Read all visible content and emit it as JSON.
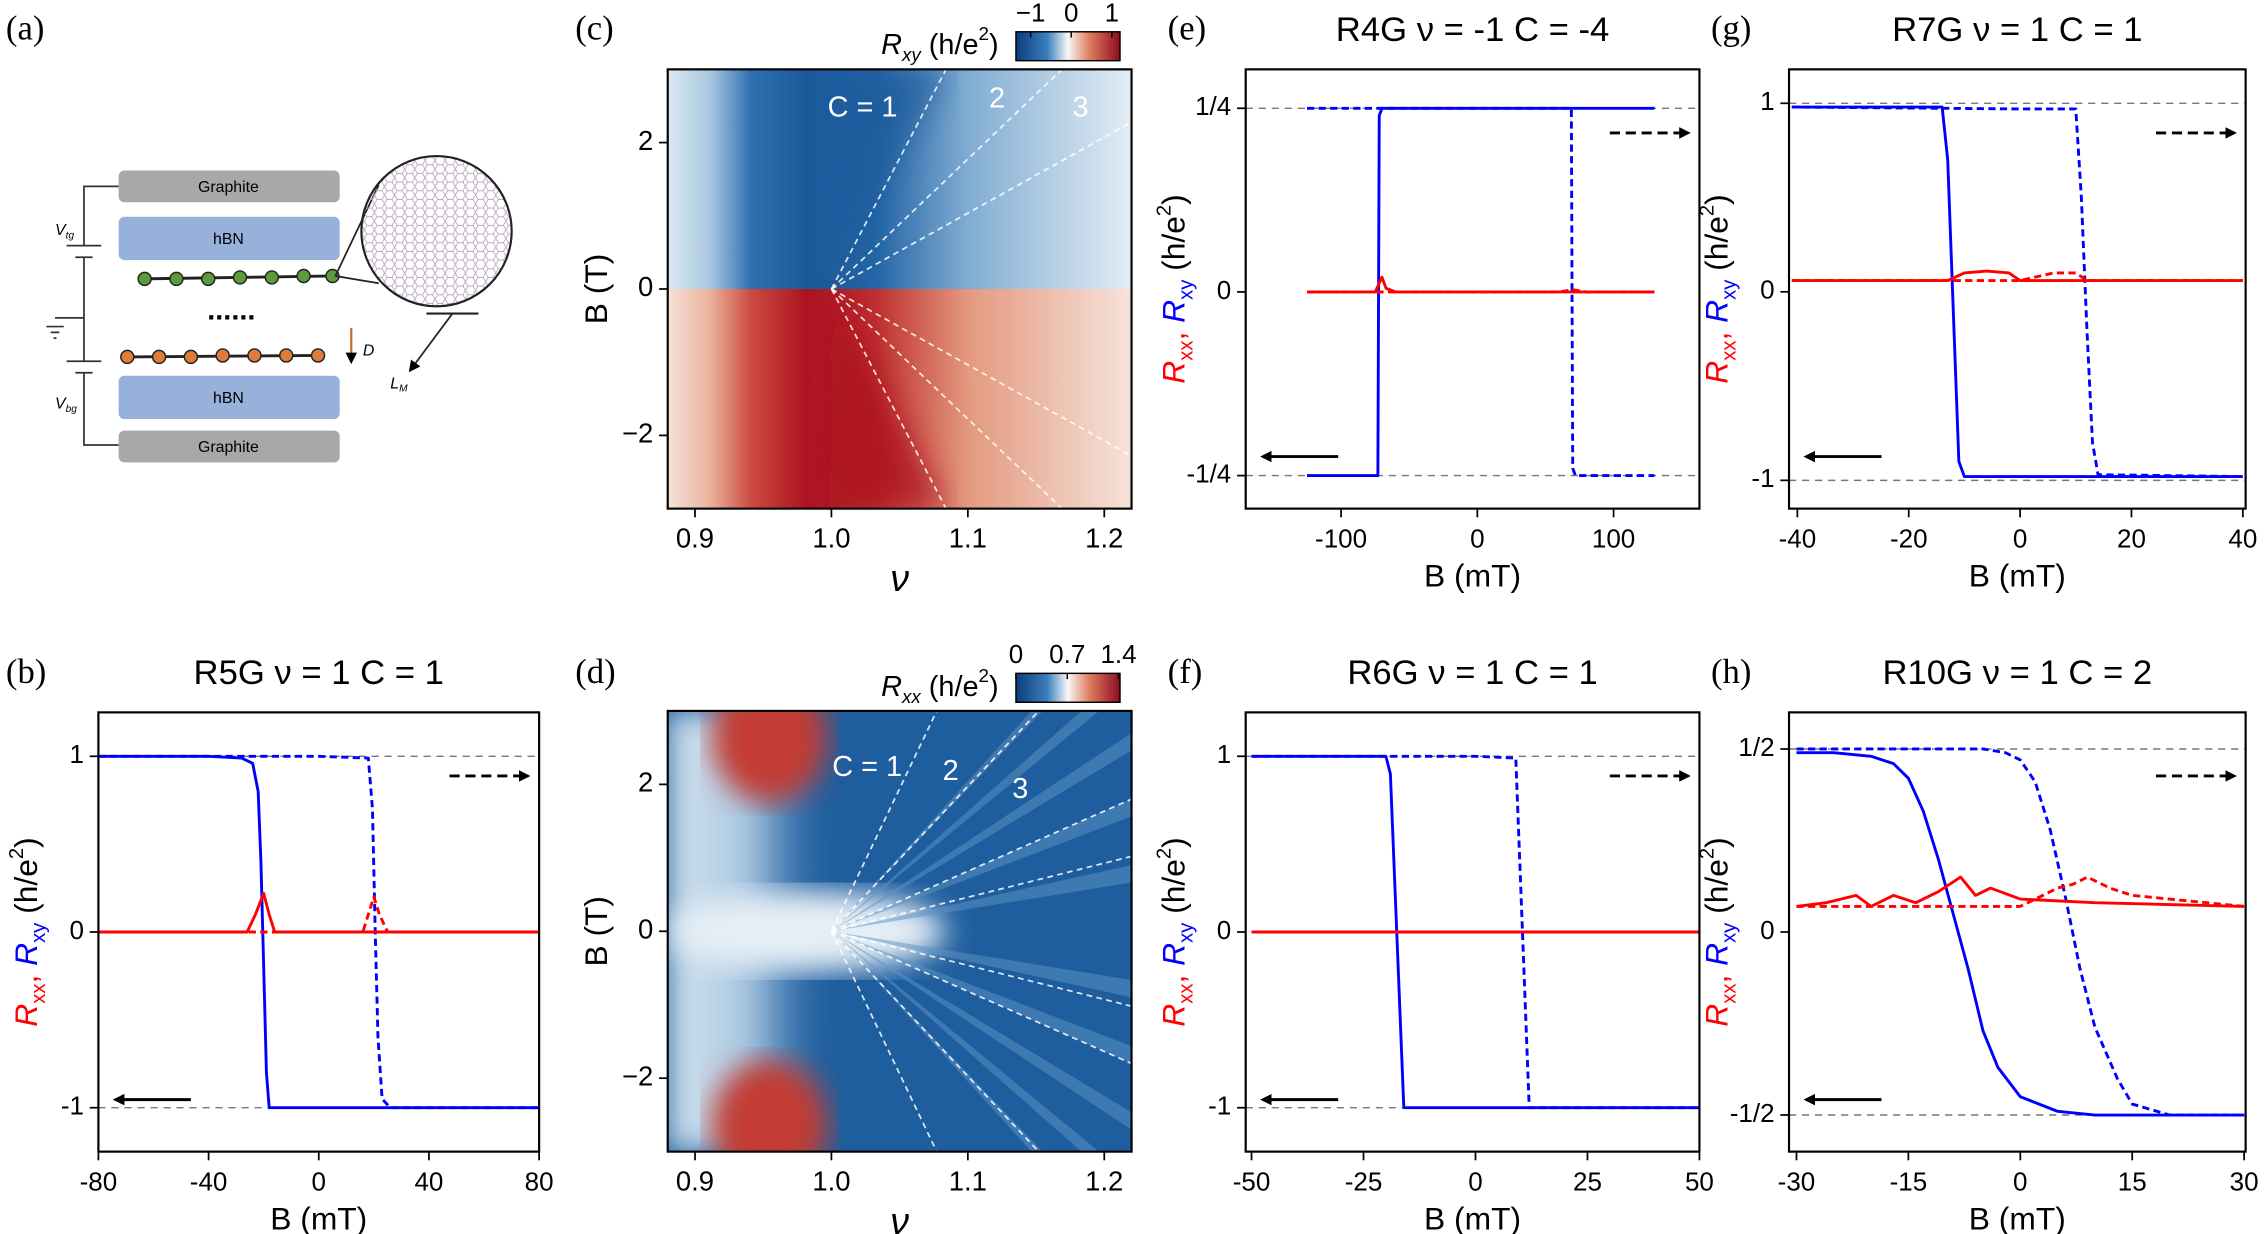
{
  "diagram": {
    "label": "(a)",
    "layers": [
      "Graphite",
      "hBN",
      "hBN",
      "Graphite"
    ],
    "top_gate": {
      "symbol": "V",
      "sub": "tg"
    },
    "bottom_gate": {
      "symbol": "V",
      "sub": "bg"
    },
    "field": "D",
    "moire": {
      "symbol": "L",
      "sub": "M"
    }
  },
  "chart_data": [
    {
      "panel": "(c)",
      "type": "heatmap",
      "xlabel": "ν",
      "ylabel": "B (T)",
      "colorbar": {
        "label": [
          "R",
          "xy",
          " (h/e",
          "2",
          ")"
        ],
        "lim": [
          -1.36,
          1.2
        ],
        "ticks": [
          {
            "value": -1,
            "label": "−1"
          },
          0,
          1
        ]
      },
      "annotations": [
        "C = 1",
        "2",
        "3"
      ],
      "xlim": [
        0.88,
        1.22
      ],
      "xticks": [
        0.9,
        {
          "value": 1,
          "label": "1.0"
        },
        1.1,
        1.2
      ],
      "ylim": [
        -3,
        3
      ],
      "yticks": [
        {
          "value": -2,
          "label": "−2"
        },
        0,
        2
      ]
    },
    {
      "panel": "(d)",
      "type": "heatmap",
      "xlabel": "ν",
      "ylabel": "B (T)",
      "colorbar": {
        "label": [
          "R",
          "xx",
          " (h/e",
          "2",
          ")"
        ],
        "lim": [
          0,
          1.42
        ],
        "ticks": [
          0,
          0.7,
          1.4
        ]
      },
      "annotations": [
        "C = 1",
        "2",
        "3"
      ],
      "xlim": [
        0.88,
        1.22
      ],
      "xticks": [
        0.9,
        {
          "value": 1,
          "label": "1.0"
        },
        1.1,
        1.2
      ],
      "ylim": [
        -3,
        3
      ],
      "yticks": [
        {
          "value": -2,
          "label": "−2"
        },
        0,
        2
      ]
    },
    {
      "panel": "(e)",
      "type": "line",
      "title": "R4G ν = -1 C = -4",
      "xlabel": "B (mT)",
      "ylabel": [
        "R",
        "xx",
        ", ",
        "R",
        "xy",
        " (h/e",
        "2",
        ")"
      ],
      "xlim": [
        -170,
        163
      ],
      "xticks": [
        -100,
        0,
        100
      ],
      "ylim": [
        -0.295,
        0.303
      ],
      "yticks": [
        {
          "value": -0.25,
          "label": "-1/4"
        },
        0,
        {
          "value": 0.25,
          "label": "1/4"
        }
      ],
      "reference_lines": [
        0.25,
        -0.25
      ],
      "series": [
        {
          "color": "#0000ff",
          "dash": false,
          "x": [
            -125,
            -73,
            -72,
            -70,
            0,
            130
          ],
          "values": [
            -0.25,
            -0.25,
            0.24,
            0.25,
            0.25,
            0.25
          ]
        },
        {
          "color": "#0000ff",
          "dash": true,
          "x": [
            -125,
            0,
            69,
            70,
            72,
            130
          ],
          "values": [
            0.25,
            0.25,
            0.25,
            -0.24,
            -0.25,
            -0.25
          ]
        },
        {
          "color": "#ff0000",
          "dash": false,
          "x": [
            -125,
            -75,
            -70,
            -67,
            -60,
            0,
            130
          ],
          "values": [
            0,
            0,
            0.02,
            0.005,
            0,
            0,
            0
          ]
        },
        {
          "color": "#ff0000",
          "dash": true,
          "x": [
            -125,
            60,
            70,
            80,
            130
          ],
          "values": [
            0,
            0,
            0.003,
            0,
            0
          ]
        }
      ]
    },
    {
      "panel": "(g)",
      "type": "line",
      "title": "R7G ν = 1 C = 1",
      "xlabel": "B (mT)",
      "ylabel": [
        "R",
        "xx",
        ", ",
        "R",
        "xy",
        " (h/e",
        "2",
        ")"
      ],
      "xlim": [
        -41.5,
        40.5
      ],
      "xticks": [
        -40,
        -20,
        0,
        20,
        40
      ],
      "ylim": [
        -1.15,
        1.18
      ],
      "yticks": [
        -1,
        0,
        1
      ],
      "reference_lines": [
        1,
        -1
      ],
      "series": [
        {
          "color": "#0000ff",
          "dash": false,
          "x": [
            -41,
            -14,
            -13,
            -12,
            -11,
            -10,
            0,
            40
          ],
          "values": [
            0.98,
            0.98,
            0.7,
            -0.1,
            -0.9,
            -0.98,
            -0.98,
            -0.98
          ]
        },
        {
          "color": "#0000ff",
          "dash": true,
          "x": [
            -41,
            0,
            10,
            11,
            12,
            13,
            14,
            40
          ],
          "values": [
            0.98,
            0.97,
            0.97,
            0.5,
            -0.2,
            -0.8,
            -0.97,
            -0.98
          ]
        },
        {
          "color": "#ff0000",
          "dash": false,
          "x": [
            -41,
            -13,
            -10,
            -6,
            -2,
            0,
            2,
            40
          ],
          "values": [
            0.06,
            0.06,
            0.1,
            0.11,
            0.1,
            0.06,
            0.06,
            0.06
          ]
        },
        {
          "color": "#ff0000",
          "dash": true,
          "x": [
            -41,
            -13,
            0,
            3,
            6,
            10,
            12,
            40
          ],
          "values": [
            0.06,
            0.06,
            0.06,
            0.08,
            0.1,
            0.1,
            0.06,
            0.06
          ]
        }
      ]
    },
    {
      "panel": "(b)",
      "type": "line",
      "title": "R5G ν = 1 C = 1",
      "xlabel": "B (mT)",
      "ylabel": [
        "R",
        "xx",
        ", ",
        "R",
        "xy",
        " (h/e",
        "2",
        ")"
      ],
      "xlim": [
        -80,
        80
      ],
      "xticks": [
        -80,
        -40,
        0,
        40,
        80
      ],
      "ylim": [
        -1.25,
        1.25
      ],
      "yticks": [
        -1,
        0,
        1
      ],
      "reference_lines": [
        1,
        -1
      ],
      "series": [
        {
          "color": "#0000ff",
          "dash": false,
          "x": [
            -80,
            -40,
            -28,
            -24,
            -22,
            -21,
            -20,
            -19,
            -18,
            0,
            40,
            80
          ],
          "values": [
            1,
            1,
            0.99,
            0.96,
            0.8,
            0.4,
            -0.2,
            -0.8,
            -1,
            -1,
            -1,
            -1
          ]
        },
        {
          "color": "#0000ff",
          "dash": true,
          "x": [
            -80,
            0,
            18,
            19.5,
            20.5,
            21.5,
            23,
            26,
            40,
            80
          ],
          "values": [
            1,
            1,
            0.99,
            0.7,
            0,
            -0.6,
            -0.95,
            -1,
            -1,
            -1
          ]
        },
        {
          "color": "#ff0000",
          "dash": false,
          "x": [
            -80,
            -26,
            -23,
            -20,
            -18,
            -16,
            80
          ],
          "values": [
            0,
            0,
            0.1,
            0.22,
            0.1,
            0,
            0
          ]
        },
        {
          "color": "#ff0000",
          "dash": true,
          "x": [
            -80,
            16,
            18,
            20,
            22,
            25,
            80
          ],
          "values": [
            0,
            0,
            0.1,
            0.2,
            0.1,
            0,
            0
          ]
        }
      ]
    },
    {
      "panel": "(f)",
      "type": "line",
      "title": "R6G ν = 1 C = 1",
      "xlabel": "B (mT)",
      "ylabel": [
        "R",
        "xx",
        ", ",
        "R",
        "xy",
        " (h/e",
        "2",
        ")"
      ],
      "xlim": [
        -51.3,
        50
      ],
      "xticks": [
        -50,
        -25,
        0,
        25,
        50
      ],
      "ylim": [
        -1.25,
        1.25
      ],
      "yticks": [
        -1,
        0,
        1
      ],
      "reference_lines": [
        1,
        -1
      ],
      "series": [
        {
          "color": "#0000ff",
          "dash": false,
          "x": [
            -50,
            -20,
            -19,
            -16,
            0,
            50
          ],
          "values": [
            1,
            1,
            0.9,
            -1,
            -1,
            -1
          ]
        },
        {
          "color": "#0000ff",
          "dash": true,
          "x": [
            -50,
            0,
            9,
            12,
            50
          ],
          "values": [
            1,
            1,
            0.99,
            -1,
            -1
          ]
        },
        {
          "color": "#ff0000",
          "dash": false,
          "x": [
            -50,
            0,
            50
          ],
          "values": [
            0,
            0,
            0
          ]
        },
        {
          "color": "#ff0000",
          "dash": true,
          "x": [
            -50,
            0,
            50
          ],
          "values": [
            0,
            0,
            0
          ]
        }
      ]
    },
    {
      "panel": "(h)",
      "type": "line",
      "title": "R10G ν = 1 C = 2",
      "xlabel": "B (mT)",
      "ylabel": [
        "R",
        "xx",
        ", ",
        "R",
        "xy",
        " (h/e",
        "2",
        ")"
      ],
      "xlim": [
        -31,
        30.2
      ],
      "xticks": [
        -30,
        -15,
        0,
        15,
        30
      ],
      "ylim": [
        -0.6,
        0.6
      ],
      "yticks": [
        {
          "value": -0.5,
          "label": "-1/2"
        },
        0,
        {
          "value": 0.5,
          "label": "1/2"
        }
      ],
      "reference_lines": [
        0.5,
        -0.5
      ],
      "series": [
        {
          "color": "#0000ff",
          "dash": false,
          "x": [
            -30,
            -25,
            -20,
            -17,
            -15,
            -13,
            -11,
            -9,
            -7,
            -5,
            -3,
            0,
            5,
            10,
            30
          ],
          "values": [
            0.49,
            0.49,
            0.48,
            0.46,
            0.42,
            0.33,
            0.2,
            0.05,
            -0.1,
            -0.27,
            -0.37,
            -0.45,
            -0.49,
            -0.5,
            -0.5
          ]
        },
        {
          "color": "#0000ff",
          "dash": true,
          "x": [
            -30,
            -10,
            -5,
            -2,
            0,
            2,
            4,
            6,
            8,
            10,
            13,
            15,
            20,
            30
          ],
          "values": [
            0.5,
            0.5,
            0.5,
            0.49,
            0.47,
            0.41,
            0.28,
            0.1,
            -0.1,
            -0.26,
            -0.4,
            -0.47,
            -0.5,
            -0.5
          ]
        },
        {
          "color": "#ff0000",
          "dash": false,
          "x": [
            -30,
            -26,
            -22,
            -20,
            -17,
            -14,
            -11,
            -8,
            -6,
            -4,
            0,
            10,
            30
          ],
          "values": [
            0.07,
            0.08,
            0.1,
            0.07,
            0.1,
            0.08,
            0.11,
            0.15,
            0.1,
            0.12,
            0.09,
            0.08,
            0.07
          ]
        },
        {
          "color": "#ff0000",
          "dash": true,
          "x": [
            -30,
            -10,
            0,
            3,
            5,
            7,
            9,
            12,
            15,
            20,
            25,
            30
          ],
          "values": [
            0.07,
            0.07,
            0.07,
            0.1,
            0.12,
            0.13,
            0.15,
            0.12,
            0.1,
            0.09,
            0.08,
            0.07
          ]
        }
      ]
    }
  ]
}
